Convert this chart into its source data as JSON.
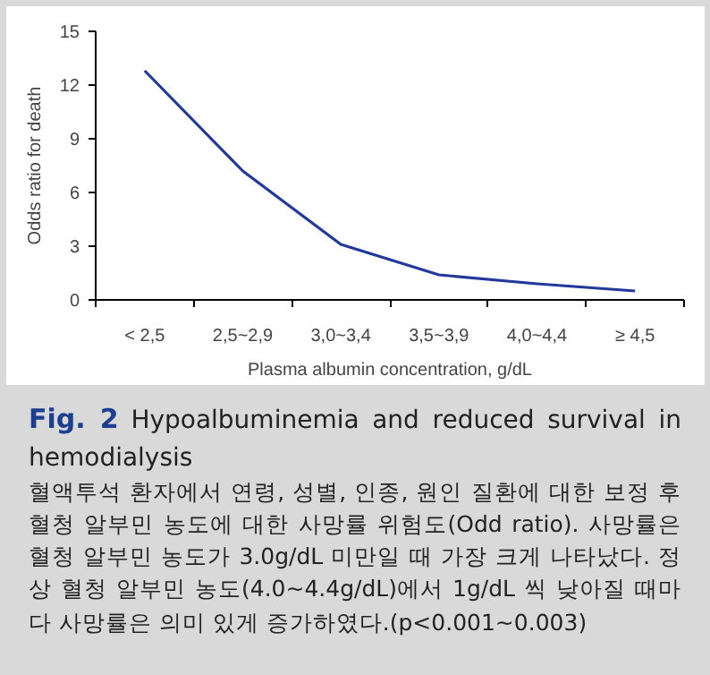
{
  "chart_data": {
    "type": "line",
    "categories": [
      "< 2,5",
      "2,5~2,9",
      "3,0~3,4",
      "3,5~3,9",
      "4,0~4,4",
      "≥ 4,5"
    ],
    "series": [
      {
        "color": "#22389a",
        "values": [
          12.8,
          7.2,
          3.1,
          1.4,
          0.9,
          0.5
        ]
      }
    ],
    "ylim": [
      0,
      15
    ],
    "yticks": [
      0,
      3,
      6,
      9,
      12,
      15
    ],
    "xlabel": "Plasma albumin concentration, g/dL",
    "ylabel": "Odds ratio for death",
    "grid": false,
    "marker": "none",
    "line_style": "solid",
    "annotations": [
      "Fig. 2",
      "Hypoalbuminemia and reduced survival in hemodialysis",
      "혈액투석 환자에서 연령, 성별, 인종, 원인 질환에 대한 보정 후 혈청 알부민 농도에 대한 사망률 위험도(Odd ratio). 사망률은 혈청 알부민 농도가 3.0g/dL 미만일 때 가장 크게 나타났다. 정상 혈청 알부민 농도(4.0~4.4g/dL)에서 1g/dL 씩 낮아질 때마다 사망률은 의미 있게 증가하였다.(p<0.001~0.003)"
    ]
  }
}
